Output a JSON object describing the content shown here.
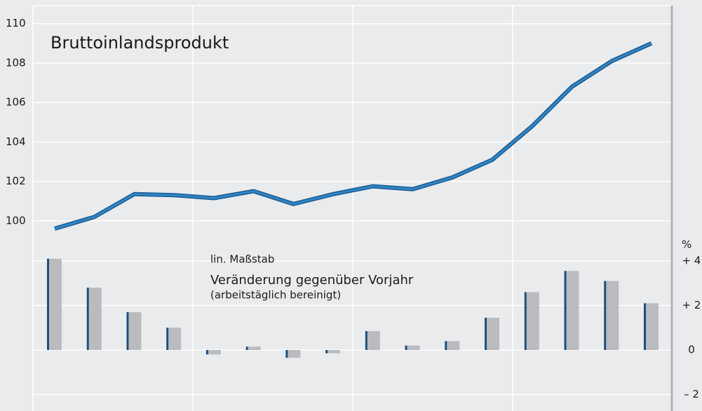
{
  "chart_data": {
    "type": "line_bar",
    "title": "Bruttoinlandsprodukt",
    "annotations": [
      "lin. Maßstab",
      "Veränderung gegenüber Vorjahr",
      "(arbeitstäglich bereinigt)"
    ],
    "y2_label": "%",
    "categories": [
      null,
      null,
      null,
      null,
      null,
      null,
      null,
      null,
      null,
      null,
      null,
      null,
      null,
      null,
      null,
      null
    ],
    "series": [
      {
        "color": "#2f86c4",
        "values": [
          99.6,
          100.2,
          101.35,
          101.3,
          101.15,
          101.5,
          100.85,
          101.35,
          101.75,
          101.6,
          102.2,
          103.1,
          104.8,
          106.8,
          108.1,
          109.0
        ]
      },
      {
        "color": "#b9bbbe",
        "axis": "y2",
        "values": [
          4.1,
          2.8,
          1.7,
          1.0,
          -0.2,
          0.15,
          -0.35,
          -0.15,
          0.85,
          0.2,
          0.4,
          1.45,
          2.6,
          3.55,
          3.1,
          2.1
        ]
      }
    ],
    "ylim": [
      90.35,
      111.2
    ],
    "yticks": [
      100,
      102,
      104,
      106,
      108,
      110
    ],
    "y2lim": [
      -2.74,
      15.72
    ],
    "y2ticks": [
      {
        "value": -2,
        "label": "– 2"
      },
      0,
      {
        "value": 2,
        "label": "+ 2"
      },
      {
        "value": 4,
        "label": "+ 4"
      }
    ],
    "grid": true
  }
}
